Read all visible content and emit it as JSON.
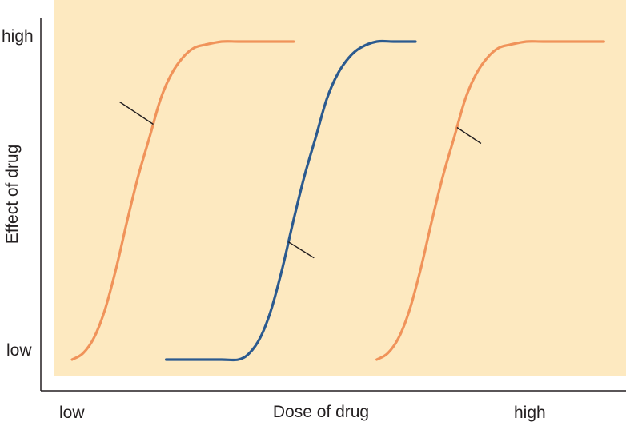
{
  "chart_data": {
    "type": "line",
    "xlabel": "Dose of drug",
    "ylabel": "Effect of drug",
    "x_tick_labels": [
      "low",
      "high"
    ],
    "y_tick_labels": [
      "high",
      "low"
    ],
    "xlim": [
      0,
      1
    ],
    "ylim": [
      0,
      1
    ],
    "grid": false,
    "background_color": "#fde9c0",
    "series": [
      {
        "color": "#f0935a",
        "x": [
          0.0,
          0.02,
          0.04,
          0.06,
          0.08,
          0.1,
          0.12,
          0.14,
          0.16,
          0.18,
          0.2,
          0.22,
          0.24,
          0.27,
          0.3,
          0.34,
          0.4
        ],
        "y": [
          0.0,
          0.02,
          0.07,
          0.16,
          0.29,
          0.44,
          0.58,
          0.7,
          0.82,
          0.9,
          0.95,
          0.98,
          0.99,
          1.0,
          1.0,
          1.0,
          1.0
        ]
      },
      {
        "color": "#2b5a8f",
        "x": [
          0.17,
          0.22,
          0.27,
          0.3,
          0.32,
          0.34,
          0.36,
          0.38,
          0.4,
          0.42,
          0.44,
          0.46,
          0.48,
          0.5,
          0.52,
          0.55,
          0.58,
          0.62
        ],
        "y": [
          0.0,
          0.0,
          0.0,
          0.0,
          0.02,
          0.07,
          0.16,
          0.29,
          0.44,
          0.58,
          0.7,
          0.82,
          0.9,
          0.95,
          0.98,
          1.0,
          1.0,
          1.0
        ]
      },
      {
        "color": "#f0935a",
        "x": [
          0.55,
          0.57,
          0.59,
          0.61,
          0.63,
          0.65,
          0.67,
          0.69,
          0.71,
          0.73,
          0.75,
          0.77,
          0.79,
          0.82,
          0.85,
          0.9,
          0.96
        ],
        "y": [
          0.0,
          0.02,
          0.07,
          0.16,
          0.29,
          0.44,
          0.58,
          0.7,
          0.82,
          0.9,
          0.95,
          0.98,
          0.99,
          1.0,
          1.0,
          1.0,
          1.0
        ]
      }
    ]
  }
}
